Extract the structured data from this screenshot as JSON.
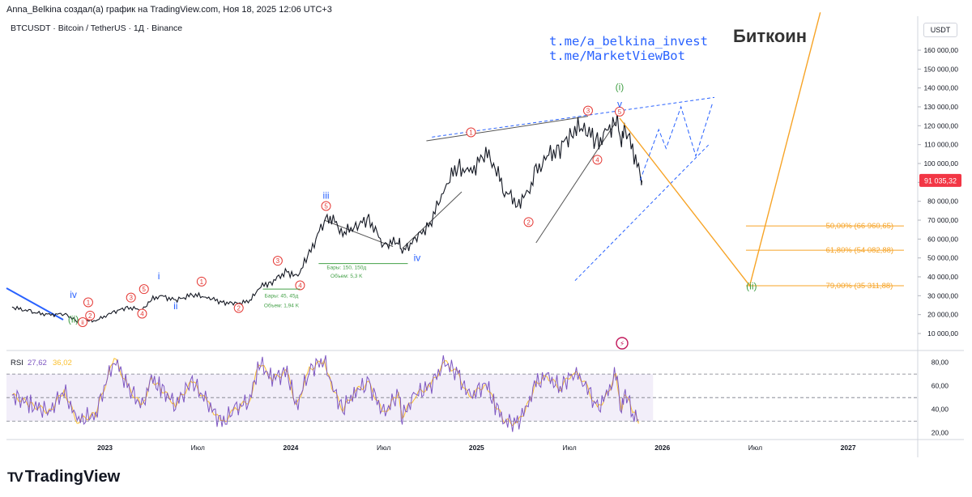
{
  "header": {
    "author_line": "Anna_Belkina создал(а) график на TradingView.com, Ноя 18, 2025 12:06 UTC+3",
    "symbol_line": "BTCUSDT · Bitcoin / TetherUS · 1Д · Binance",
    "link1": "t.me/a_belkina_invest",
    "link2": "t.me/MarketViewBot",
    "title": "Биткоин",
    "currency": "USDT"
  },
  "footer": {
    "brand": "TradingView",
    "logo": "TV"
  },
  "colors": {
    "candle": "#131722",
    "wave": "#e53935",
    "blue": "#2962ff",
    "fib": "#f7a427",
    "rsi": "#7e57c2",
    "rsi_ma": "#fbc02d",
    "green": "#43a047"
  },
  "chart_data": {
    "type": "candlestick",
    "title": "Биткоин",
    "price_axis": {
      "ticks": [
        {
          "v": 10000,
          "label": "10 000,00"
        },
        {
          "v": 20000,
          "label": "20 000,00"
        },
        {
          "v": 30000,
          "label": "30 000,00"
        },
        {
          "v": 40000,
          "label": "40 000,00"
        },
        {
          "v": 50000,
          "label": "50 000,00"
        },
        {
          "v": 60000,
          "label": "60 000,00"
        },
        {
          "v": 70000,
          "label": "70 000,00"
        },
        {
          "v": 80000,
          "label": "80 000,00"
        },
        {
          "v": 90000,
          "label": "90 000,00"
        },
        {
          "v": 100000,
          "label": "100 000,00"
        },
        {
          "v": 110000,
          "label": "110 000,00"
        },
        {
          "v": 120000,
          "label": "120 000,00"
        },
        {
          "v": 130000,
          "label": "130 000,00"
        },
        {
          "v": 140000,
          "label": "140 000,00"
        },
        {
          "v": 150000,
          "label": "150 000,00"
        },
        {
          "v": 160000,
          "label": "160 000,00"
        }
      ],
      "current": {
        "v": 91035.32,
        "label": "91 035,32"
      }
    },
    "time_axis": [
      {
        "t": 2023.0,
        "label": "2023",
        "year": true
      },
      {
        "t": 2023.5,
        "label": "Июл",
        "year": false
      },
      {
        "t": 2024.0,
        "label": "2024",
        "year": true
      },
      {
        "t": 2024.5,
        "label": "Июл",
        "year": false
      },
      {
        "t": 2025.0,
        "label": "2025",
        "year": true
      },
      {
        "t": 2025.5,
        "label": "Июл",
        "year": false
      },
      {
        "t": 2026.0,
        "label": "2026",
        "year": true
      },
      {
        "t": 2026.5,
        "label": "Июл",
        "year": false
      },
      {
        "t": 2027.0,
        "label": "2027",
        "year": true
      }
    ],
    "price_path": [
      [
        2022.5,
        24000
      ],
      [
        2022.6,
        21500
      ],
      [
        2022.7,
        19800
      ],
      [
        2022.78,
        20500
      ],
      [
        2022.85,
        16600
      ],
      [
        2022.95,
        16800
      ],
      [
        2023.05,
        21500
      ],
      [
        2023.12,
        23800
      ],
      [
        2023.2,
        22500
      ],
      [
        2023.25,
        28000
      ],
      [
        2023.3,
        30000
      ],
      [
        2023.38,
        27500
      ],
      [
        2023.47,
        30500
      ],
      [
        2023.55,
        29300
      ],
      [
        2023.63,
        26500
      ],
      [
        2023.7,
        25800
      ],
      [
        2023.78,
        27000
      ],
      [
        2023.83,
        34500
      ],
      [
        2023.9,
        37500
      ],
      [
        2023.98,
        43000
      ],
      [
        2024.03,
        39500
      ],
      [
        2024.1,
        52000
      ],
      [
        2024.18,
        70000
      ],
      [
        2024.22,
        71500
      ],
      [
        2024.28,
        63000
      ],
      [
        2024.35,
        67000
      ],
      [
        2024.42,
        70500
      ],
      [
        2024.5,
        57000
      ],
      [
        2024.58,
        59000
      ],
      [
        2024.6,
        53000
      ],
      [
        2024.67,
        60000
      ],
      [
        2024.75,
        68000
      ],
      [
        2024.83,
        88000
      ],
      [
        2024.9,
        99000
      ],
      [
        2024.96,
        94000
      ],
      [
        2025.05,
        106000
      ],
      [
        2025.1,
        98000
      ],
      [
        2025.15,
        86000
      ],
      [
        2025.22,
        79000
      ],
      [
        2025.27,
        83000
      ],
      [
        2025.32,
        95000
      ],
      [
        2025.38,
        104000
      ],
      [
        2025.45,
        108000
      ],
      [
        2025.52,
        118000
      ],
      [
        2025.58,
        119000
      ],
      [
        2025.65,
        111000
      ],
      [
        2025.7,
        116000
      ],
      [
        2025.75,
        124000
      ],
      [
        2025.78,
        112000
      ],
      [
        2025.8,
        118000
      ],
      [
        2025.84,
        108000
      ],
      [
        2025.88,
        94000
      ],
      [
        2025.89,
        91035
      ]
    ],
    "projection_orange": [
      [
        2025.77,
        124000
      ],
      [
        2026.47,
        35311
      ],
      [
        2026.85,
        180000
      ]
    ],
    "projection_blue_dashed": [
      [
        2025.88,
        91000
      ],
      [
        2025.98,
        118000
      ],
      [
        2026.02,
        108000
      ],
      [
        2026.1,
        130000
      ],
      [
        2026.18,
        104000
      ],
      [
        2026.27,
        132000
      ]
    ],
    "channel_upper": [
      [
        2024.76,
        114000
      ],
      [
        2026.28,
        135000
      ]
    ],
    "channel_lower": [
      [
        2025.53,
        38000
      ],
      [
        2026.25,
        110000
      ]
    ],
    "fib_levels": [
      {
        "v": 66960.65,
        "label": "50,00% (66 960,65)"
      },
      {
        "v": 54082.88,
        "label": "61,80% (54 082,88)"
      },
      {
        "v": 35311.88,
        "label": "79,00% (35 311,88)"
      }
    ],
    "wave_labels": [
      {
        "t": 2022.88,
        "v": 16000,
        "text": "ii",
        "color": "#e53935",
        "circle": true
      },
      {
        "t": 2022.83,
        "v": 17500,
        "text": "(ii)",
        "color": "#43a047",
        "circle": false
      },
      {
        "t": 2022.92,
        "v": 19500,
        "text": "2",
        "color": "#e53935",
        "circle": true
      },
      {
        "t": 2022.83,
        "v": 30500,
        "text": "iv",
        "color": "#2962ff",
        "circle": false
      },
      {
        "t": 2022.91,
        "v": 26500,
        "text": "1",
        "color": "#e53935",
        "circle": true
      },
      {
        "t": 2023.14,
        "v": 29000,
        "text": "3",
        "color": "#e53935",
        "circle": true
      },
      {
        "t": 2023.21,
        "v": 33500,
        "text": "5",
        "color": "#e53935",
        "circle": true
      },
      {
        "t": 2023.29,
        "v": 40500,
        "text": "i",
        "color": "#2962ff",
        "circle": false
      },
      {
        "t": 2023.2,
        "v": 20500,
        "text": "4",
        "color": "#e53935",
        "circle": true
      },
      {
        "t": 2023.38,
        "v": 24500,
        "text": "ii",
        "color": "#2962ff",
        "circle": false
      },
      {
        "t": 2023.52,
        "v": 37500,
        "text": "1",
        "color": "#e53935",
        "circle": true
      },
      {
        "t": 2023.72,
        "v": 23500,
        "text": "2",
        "color": "#e53935",
        "circle": true
      },
      {
        "t": 2023.93,
        "v": 48500,
        "text": "3",
        "color": "#e53935",
        "circle": true
      },
      {
        "t": 2024.05,
        "v": 35500,
        "text": "4",
        "color": "#e53935",
        "circle": true
      },
      {
        "t": 2024.19,
        "v": 83000,
        "text": "iii",
        "color": "#2962ff",
        "circle": false
      },
      {
        "t": 2024.19,
        "v": 77500,
        "text": "5",
        "color": "#e53935",
        "circle": true
      },
      {
        "t": 2024.68,
        "v": 50000,
        "text": "iv",
        "color": "#2962ff",
        "circle": false
      },
      {
        "t": 2024.97,
        "v": 116500,
        "text": "1",
        "color": "#e53935",
        "circle": true
      },
      {
        "t": 2025.28,
        "v": 69000,
        "text": "2",
        "color": "#e53935",
        "circle": true
      },
      {
        "t": 2025.6,
        "v": 128000,
        "text": "3",
        "color": "#e53935",
        "circle": true
      },
      {
        "t": 2025.65,
        "v": 102000,
        "text": "4",
        "color": "#e53935",
        "circle": true
      },
      {
        "t": 2025.77,
        "v": 127500,
        "text": "5",
        "color": "#e53935",
        "circle": true
      },
      {
        "t": 2025.77,
        "v": 140500,
        "text": "(i)",
        "color": "#43a047",
        "circle": false
      },
      {
        "t": 2025.77,
        "v": 131500,
        "text": "v",
        "color": "#2962ff",
        "circle": false
      },
      {
        "t": 2026.48,
        "v": 35000,
        "text": "(ii)",
        "color": "#43a047",
        "circle": false
      }
    ],
    "measure_notes": [
      {
        "t": 2024.3,
        "v": 44000,
        "text": "Бары: 150, 150д"
      },
      {
        "t": 2024.3,
        "v": 39500,
        "text": "Объем: 5,3 K"
      },
      {
        "t": 2023.95,
        "v": 29000,
        "text": "Бары: 45, 45д"
      },
      {
        "t": 2023.95,
        "v": 24000,
        "text": "Объем: 1,94 K"
      }
    ],
    "rsi": {
      "label": "RSI",
      "value": "27,62",
      "ma_value": "36,02",
      "ylim": [
        15,
        88
      ],
      "ticks": [
        {
          "v": 20,
          "label": "20,00"
        },
        {
          "v": 40,
          "label": "40,00"
        },
        {
          "v": 60,
          "label": "60,00"
        },
        {
          "v": 80,
          "label": "80,00"
        }
      ],
      "band": [
        30,
        70
      ],
      "mid": 50,
      "path": [
        [
          2022.5,
          52
        ],
        [
          2022.6,
          44
        ],
        [
          2022.7,
          38
        ],
        [
          2022.78,
          56
        ],
        [
          2022.85,
          30
        ],
        [
          2022.95,
          36
        ],
        [
          2023.05,
          84
        ],
        [
          2023.12,
          60
        ],
        [
          2023.2,
          42
        ],
        [
          2023.25,
          66
        ],
        [
          2023.3,
          58
        ],
        [
          2023.38,
          44
        ],
        [
          2023.47,
          64
        ],
        [
          2023.55,
          46
        ],
        [
          2023.63,
          28
        ],
        [
          2023.7,
          40
        ],
        [
          2023.78,
          48
        ],
        [
          2023.83,
          80
        ],
        [
          2023.9,
          66
        ],
        [
          2023.98,
          72
        ],
        [
          2024.03,
          42
        ],
        [
          2024.1,
          74
        ],
        [
          2024.18,
          82
        ],
        [
          2024.22,
          60
        ],
        [
          2024.28,
          40
        ],
        [
          2024.35,
          56
        ],
        [
          2024.42,
          62
        ],
        [
          2024.5,
          36
        ],
        [
          2024.58,
          54
        ],
        [
          2024.6,
          34
        ],
        [
          2024.67,
          52
        ],
        [
          2024.75,
          60
        ],
        [
          2024.83,
          80
        ],
        [
          2024.9,
          70
        ],
        [
          2024.96,
          50
        ],
        [
          2025.05,
          62
        ],
        [
          2025.1,
          44
        ],
        [
          2025.15,
          30
        ],
        [
          2025.22,
          28
        ],
        [
          2025.27,
          42
        ],
        [
          2025.32,
          62
        ],
        [
          2025.38,
          68
        ],
        [
          2025.45,
          58
        ],
        [
          2025.52,
          72
        ],
        [
          2025.58,
          64
        ],
        [
          2025.65,
          40
        ],
        [
          2025.7,
          52
        ],
        [
          2025.75,
          70
        ],
        [
          2025.78,
          40
        ],
        [
          2025.8,
          54
        ],
        [
          2025.84,
          38
        ],
        [
          2025.88,
          28
        ]
      ]
    }
  }
}
